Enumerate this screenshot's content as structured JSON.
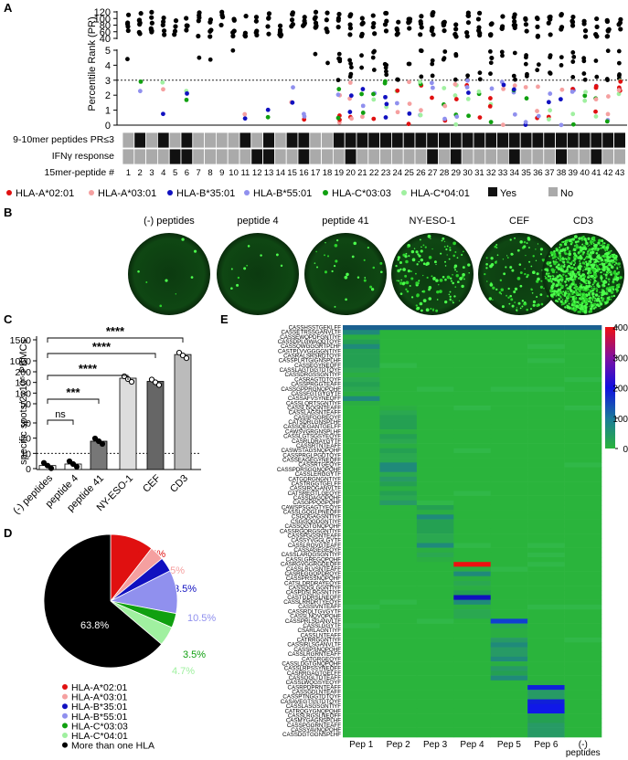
{
  "panels": {
    "a": "A",
    "b": "B",
    "c": "C",
    "d": "D",
    "e": "E"
  },
  "colors": {
    "hla_a0201": "#e01010",
    "hla_a0301": "#f5a0a0",
    "hla_b3501": "#1010c0",
    "hla_b5501": "#9090ee",
    "hla_c0303": "#10a010",
    "hla_c0401": "#a0f0a0",
    "multi": "#000000",
    "yes": "#111111",
    "no": "#aaaaaa"
  },
  "panel_a": {
    "ylabel": "Percentile Rank (PR)",
    "yticks_top": [
      "120",
      "100",
      "80",
      "60",
      "40"
    ],
    "yticks_bottom": [
      "5",
      "4",
      "3",
      "2",
      "1",
      "0"
    ],
    "row_labels": [
      "9-10mer peptides PR≤3",
      "IFNγ response",
      "15mer-peptide #"
    ],
    "peptide_numbers": [
      "1",
      "2",
      "3",
      "4",
      "5",
      "6",
      "7",
      "8",
      "9",
      "10",
      "11",
      "12",
      "13",
      "14",
      "15",
      "16",
      "17",
      "18",
      "19",
      "20",
      "21",
      "22",
      "23",
      "24",
      "25",
      "26",
      "27",
      "28",
      "29",
      "30",
      "31",
      "32",
      "33",
      "34",
      "35",
      "36",
      "37",
      "38",
      "39",
      "40",
      "41",
      "42",
      "43"
    ],
    "pr3_row": [
      0,
      1,
      0,
      1,
      0,
      1,
      0,
      0,
      0,
      0,
      1,
      0,
      1,
      0,
      1,
      1,
      0,
      0,
      1,
      1,
      1,
      1,
      1,
      1,
      1,
      1,
      1,
      1,
      1,
      1,
      1,
      1,
      1,
      1,
      1,
      1,
      1,
      1,
      1,
      1,
      1,
      1,
      1
    ],
    "ifn_row": [
      0,
      0,
      0,
      0,
      1,
      1,
      0,
      0,
      0,
      0,
      0,
      1,
      1,
      0,
      0,
      1,
      0,
      0,
      0,
      1,
      0,
      0,
      0,
      0,
      0,
      0,
      1,
      0,
      1,
      0,
      0,
      0,
      0,
      1,
      0,
      0,
      0,
      1,
      0,
      0,
      1,
      0,
      0
    ],
    "legend": [
      {
        "label": "HLA-A*02:01",
        "key": "hla_a0201",
        "shape": "dot"
      },
      {
        "label": "HLA-A*03:01",
        "key": "hla_a0301",
        "shape": "dot"
      },
      {
        "label": "HLA-B*35:01",
        "key": "hla_b3501",
        "shape": "dot"
      },
      {
        "label": "HLA-B*55:01",
        "key": "hla_b5501",
        "shape": "dot"
      },
      {
        "label": "HLA-C*03:03",
        "key": "hla_c0303",
        "shape": "dot"
      },
      {
        "label": "HLA-C*04:01",
        "key": "hla_c0401",
        "shape": "dot"
      },
      {
        "label": "Yes",
        "key": "yes",
        "shape": "square"
      },
      {
        "label": "No",
        "key": "no",
        "shape": "square"
      }
    ],
    "threshold": 3
  },
  "panel_b": {
    "wells": [
      {
        "label": "(-) peptides",
        "spots": 8
      },
      {
        "label": "peptide 4",
        "spots": 10
      },
      {
        "label": "peptide 41",
        "spots": 28
      },
      {
        "label": "NY-ESO-1",
        "spots": 140
      },
      {
        "label": "CEF",
        "spots": 120
      },
      {
        "label": "CD3",
        "spots": 900
      }
    ]
  },
  "chart_data": [
    {
      "type": "bar",
      "title": "",
      "ylabel": "specific spots/2x10⁵ PBMCs",
      "categories": [
        "(-) peptides",
        "peptide 4",
        "peptide 41",
        "NY-ESO-1",
        "CEF",
        "CD3"
      ],
      "values": [
        2,
        3,
        18,
        170,
        155,
        1150
      ],
      "yticks": [
        "0",
        "10",
        "20",
        "30",
        "50",
        "100",
        "150",
        "200",
        "1000",
        "1500"
      ],
      "significance": [
        {
          "from": "(-) peptides",
          "to": "peptide 4",
          "label": "ns"
        },
        {
          "from": "(-) peptides",
          "to": "peptide 41",
          "label": "***"
        },
        {
          "from": "(-) peptides",
          "to": "NY-ESO-1",
          "label": "****"
        },
        {
          "from": "(-) peptides",
          "to": "CEF",
          "label": "****"
        },
        {
          "from": "(-) peptides",
          "to": "CD3",
          "label": "****"
        }
      ],
      "dotted_line": 10
    },
    {
      "type": "pie",
      "slices": [
        {
          "label": "HLA-A*02:01",
          "value": 10.5,
          "text": "10.5%",
          "key": "hla_a0201"
        },
        {
          "label": "HLA-A*03:01",
          "value": 3.5,
          "text": "3.5%",
          "key": "hla_a0301"
        },
        {
          "label": "HLA-B*35:01",
          "value": 3.5,
          "text": "3.5%",
          "key": "hla_b3501"
        },
        {
          "label": "HLA-B*55:01",
          "value": 10.5,
          "text": "10.5%",
          "key": "hla_b5501"
        },
        {
          "label": "HLA-C*03:03",
          "value": 3.5,
          "text": "3.5%",
          "key": "hla_c0303"
        },
        {
          "label": "HLA-C*04:01",
          "value": 4.7,
          "text": "4.7%",
          "key": "hla_c0401"
        },
        {
          "label": "More than one HLA",
          "value": 63.8,
          "text": "63.8%",
          "key": "multi"
        }
      ]
    },
    {
      "type": "heatmap",
      "xlabels": [
        "Pep 1",
        "Pep 2",
        "Pep 3",
        "Pep 4",
        "Pep 5",
        "Pep 6",
        "(-)\npeptides"
      ],
      "colorbar_ticks": [
        "400",
        "300",
        "200",
        "100",
        "0"
      ],
      "rows": [
        {
          "label": "CASSHSSTGEKLFF",
          "group": -1
        },
        {
          "label": "CASSETRSSGANVLTF",
          "group": 0
        },
        {
          "label": "CASSEWQPDFGNTIYF",
          "group": 0
        },
        {
          "label": "CASSDPLGWAQDTQYF",
          "group": 0
        },
        {
          "label": "CASSQWGGGRTPLHF",
          "group": 0
        },
        {
          "label": "CASTPLVVGGGGNTIYF",
          "group": 0
        },
        {
          "label": "CASRALSRSRDTQYF",
          "group": 0
        },
        {
          "label": "CASSPLRTGIGNSPLHF",
          "group": 0
        },
        {
          "label": "CASSEGYNEQFF",
          "group": 0
        },
        {
          "label": "CASSLAGTGGTDTQYF",
          "group": 0
        },
        {
          "label": "CASSDRGSSGNTIYF",
          "group": 0
        },
        {
          "label": "CASRAGTDTQYF",
          "group": 0
        },
        {
          "label": "CASSPRGGTEAFF",
          "group": 0
        },
        {
          "label": "CASSGPPRGNQPQHF",
          "group": 0
        },
        {
          "label": "CASSFGTGYGYTF",
          "group": 0
        },
        {
          "label": "CASSAFVSYNEQFF",
          "group": 0
        },
        {
          "label": "CASSLQRTSGNTIYF",
          "group": 0
        },
        {
          "label": "CASSLGQGNTEAFF",
          "group": 1
        },
        {
          "label": "CASSLAGSNTEAFF",
          "group": 1
        },
        {
          "label": "CASSFGGREQYF",
          "group": 1
        },
        {
          "label": "CATSDRLGNSPLHF",
          "group": 1
        },
        {
          "label": "CASSQEGANTGELFF",
          "group": 1
        },
        {
          "label": "CAWSVGRGNSPLHF",
          "group": 1
        },
        {
          "label": "CASSLGTSGSYEQYF",
          "group": 1
        },
        {
          "label": "CASRLDRAYGYTF",
          "group": 1
        },
        {
          "label": "CASSRTNTEAFF",
          "group": 1
        },
        {
          "label": "CASWSTAGSNQPQHF",
          "group": 1
        },
        {
          "label": "CASSPRGLPGDTQYF",
          "group": 1
        },
        {
          "label": "CASSEAGEGYNEQFF",
          "group": 1
        },
        {
          "label": "CASSRTGEQYF",
          "group": 1
        },
        {
          "label": "CASSPDRSGGNQPQHF",
          "group": 1
        },
        {
          "label": "CASSLERGGYTF",
          "group": 1
        },
        {
          "label": "CATGDRGNGNTIYF",
          "group": 1
        },
        {
          "label": "CASTRGGTGELFF",
          "group": 1
        },
        {
          "label": "CASSIRQGANVLTF",
          "group": 1
        },
        {
          "label": "CATSREGTLGEQYF",
          "group": 1
        },
        {
          "label": "CASSDAGQPQHF",
          "group": 1
        },
        {
          "label": "CASGPPQGPQHF",
          "group": 1
        },
        {
          "label": "CAWSPSGAGTYEQYF",
          "group": 2
        },
        {
          "label": "CASSLGQGLPNEQFF",
          "group": 2
        },
        {
          "label": "CSGQGAGSNTIYF",
          "group": 2
        },
        {
          "label": "CSGGQGDGNTIYF",
          "group": 2
        },
        {
          "label": "CASSQGTGNQPQHF",
          "group": 2
        },
        {
          "label": "CASSRGQRGSGNTIYF",
          "group": 2
        },
        {
          "label": "CASSFGGSNTEAFF",
          "group": 2
        },
        {
          "label": "CASSYVGGLGYTF",
          "group": 2
        },
        {
          "label": "CASSLRQVGTEAFF",
          "group": 2
        },
        {
          "label": "CASSAGEGEQYF",
          "group": 2
        },
        {
          "label": "CASSLARQGSGNTIYF",
          "group": 2
        },
        {
          "label": "CASSLGREGQPQHF",
          "group": 2
        },
        {
          "label": "CASRGVGGRGDEQFF",
          "group": 3,
          "hot": 1
        },
        {
          "label": "CASSLRLVSNTEAFF",
          "group": 3
        },
        {
          "label": "CASREGGQPDRQYF",
          "group": 3
        },
        {
          "label": "CASSPRSSNQPQHF",
          "group": 3
        },
        {
          "label": "CATSLDRDRAYEQYF",
          "group": 3
        },
        {
          "label": "CASSQGLGGNTIYF",
          "group": 3
        },
        {
          "label": "CASPDSLRGSNTIYF",
          "group": 3
        },
        {
          "label": "CASTGDRSLNEQFF",
          "group": 3,
          "hot": 2
        },
        {
          "label": "CASSLRRDRTYEQYF",
          "group": 3
        },
        {
          "label": "CASSIVNTEAFF",
          "group": 3
        },
        {
          "label": "CASSRDLTGVGYTF",
          "group": 3
        },
        {
          "label": "CASSLNQVQPQHF",
          "group": 3
        },
        {
          "label": "CASSPRLSGANVLTF",
          "group": 4,
          "hot": 3
        },
        {
          "label": "CASSLGGYTF",
          "group": 4
        },
        {
          "label": "CSARLAGNTIYF",
          "group": 4
        },
        {
          "label": "CASSLNTEAFF",
          "group": 4
        },
        {
          "label": "CATRRGGNTIYF",
          "group": 4
        },
        {
          "label": "CASSIRLSGANVLTF",
          "group": 4
        },
        {
          "label": "CASSPSNQPQHF",
          "group": 4
        },
        {
          "label": "CASSLRGRNTEAFF",
          "group": 4
        },
        {
          "label": "CATGRGEQYF",
          "group": 4
        },
        {
          "label": "CASSLDGTGNQPQHF",
          "group": 4
        },
        {
          "label": "CASSLRPSSYNEQFF",
          "group": 4
        },
        {
          "label": "CASRRGAGTGELFF",
          "group": 4
        },
        {
          "label": "CASSQGLTDTEAFF",
          "group": 4
        },
        {
          "label": "CASSLWQGSYEQYF",
          "group": 5
        },
        {
          "label": "CASRPDPRNTEAFF",
          "group": 5,
          "hot": 4
        },
        {
          "label": "CASSGDLNTEAFF",
          "group": 5
        },
        {
          "label": "CASSPTNGGTDTQYF",
          "group": 5
        },
        {
          "label": "CASAVEGTSSTDTQYF",
          "group": 5,
          "hot": 4
        },
        {
          "label": "CASSLASGSGNTIYF",
          "group": 5,
          "hot": 5
        },
        {
          "label": "CATRQGYGNQPQHF",
          "group": 5,
          "hot": 5
        },
        {
          "label": "CASSLRGSLNEQFF",
          "group": 5
        },
        {
          "label": "CASMYGAGNSPLHF",
          "group": 5
        },
        {
          "label": "CASSPGGRNTEAFF",
          "group": 5
        },
        {
          "label": "CASSYAVNQPQHF",
          "group": 5
        },
        {
          "label": "CASSDGTGGNSPLHF",
          "group": 5
        }
      ]
    }
  ]
}
